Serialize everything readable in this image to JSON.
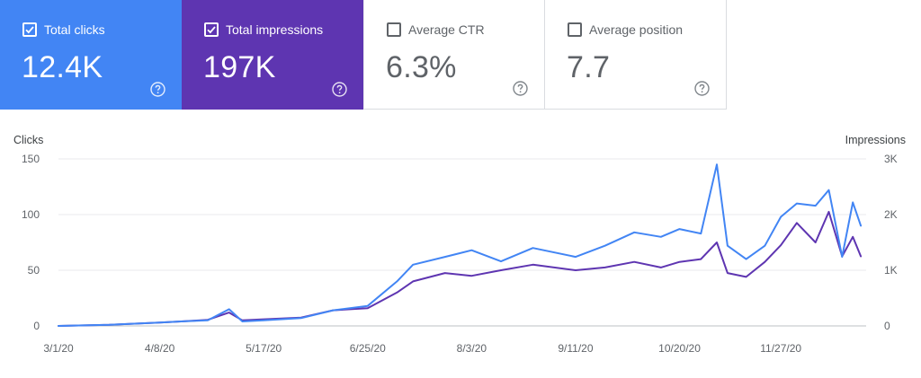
{
  "metrics": [
    {
      "key": "clicks",
      "label": "Total clicks",
      "value": "12.4K",
      "checked": true,
      "color": "#4285f4"
    },
    {
      "key": "impressions",
      "label": "Total impressions",
      "value": "197K",
      "checked": true,
      "color": "#5e35b1"
    },
    {
      "key": "ctr",
      "label": "Average CTR",
      "value": "6.3%",
      "checked": false,
      "color": "#ffffff"
    },
    {
      "key": "position",
      "label": "Average position",
      "value": "7.7",
      "checked": false,
      "color": "#ffffff"
    }
  ],
  "icons": {
    "checkbox": "checkbox-icon",
    "help": "help-circle-icon"
  },
  "chart_data": {
    "type": "line",
    "left_axis_title": "Clicks",
    "right_axis_title": "Impressions",
    "left_ticks": [
      "150",
      "100",
      "50",
      "0"
    ],
    "right_ticks": [
      "3K",
      "2K",
      "1K",
      "0"
    ],
    "ylim_left": [
      0,
      150
    ],
    "ylim_right": [
      0,
      3000
    ],
    "x_tick_labels": [
      "3/1/20",
      "4/8/20",
      "5/17/20",
      "6/25/20",
      "8/3/20",
      "9/11/20",
      "10/20/20",
      "11/27/20"
    ],
    "x_range": [
      "3/1/20",
      "12/29/20"
    ],
    "grid": true,
    "series": [
      {
        "name": "Clicks",
        "axis": "left",
        "color": "#4285f4",
        "points": [
          [
            "3/1/20",
            0
          ],
          [
            "3/20/20",
            1
          ],
          [
            "4/8/20",
            3
          ],
          [
            "4/16/20",
            4
          ],
          [
            "4/26/20",
            5
          ],
          [
            "5/4/20",
            15
          ],
          [
            "5/9/20",
            4
          ],
          [
            "5/17/20",
            5
          ],
          [
            "5/31/20",
            7
          ],
          [
            "6/12/20",
            14
          ],
          [
            "6/25/20",
            18
          ],
          [
            "7/6/20",
            40
          ],
          [
            "7/12/20",
            55
          ],
          [
            "7/24/20",
            62
          ],
          [
            "8/3/20",
            68
          ],
          [
            "8/14/20",
            58
          ],
          [
            "8/26/20",
            70
          ],
          [
            "9/11/20",
            62
          ],
          [
            "9/22/20",
            72
          ],
          [
            "10/3/20",
            84
          ],
          [
            "10/13/20",
            80
          ],
          [
            "10/20/20",
            87
          ],
          [
            "10/28/20",
            83
          ],
          [
            "11/3/20",
            145
          ],
          [
            "11/7/20",
            72
          ],
          [
            "11/14/20",
            60
          ],
          [
            "11/21/20",
            72
          ],
          [
            "11/27/20",
            98
          ],
          [
            "12/3/20",
            110
          ],
          [
            "12/10/20",
            108
          ],
          [
            "12/15/20",
            122
          ],
          [
            "12/20/20",
            62
          ],
          [
            "12/24/20",
            111
          ],
          [
            "12/27/20",
            90
          ]
        ]
      },
      {
        "name": "Impressions",
        "axis": "right",
        "color": "#5e35b1",
        "points": [
          [
            "3/1/20",
            0
          ],
          [
            "3/20/20",
            20
          ],
          [
            "4/8/20",
            60
          ],
          [
            "4/16/20",
            80
          ],
          [
            "4/26/20",
            110
          ],
          [
            "5/4/20",
            240
          ],
          [
            "5/9/20",
            100
          ],
          [
            "5/17/20",
            120
          ],
          [
            "5/31/20",
            150
          ],
          [
            "6/12/20",
            280
          ],
          [
            "6/25/20",
            320
          ],
          [
            "7/6/20",
            600
          ],
          [
            "7/12/20",
            800
          ],
          [
            "7/24/20",
            950
          ],
          [
            "8/3/20",
            900
          ],
          [
            "8/14/20",
            1000
          ],
          [
            "8/26/20",
            1100
          ],
          [
            "9/11/20",
            1000
          ],
          [
            "9/22/20",
            1050
          ],
          [
            "10/3/20",
            1150
          ],
          [
            "10/13/20",
            1050
          ],
          [
            "10/20/20",
            1150
          ],
          [
            "10/28/20",
            1200
          ],
          [
            "11/3/20",
            1500
          ],
          [
            "11/7/20",
            950
          ],
          [
            "11/14/20",
            880
          ],
          [
            "11/21/20",
            1150
          ],
          [
            "11/27/20",
            1450
          ],
          [
            "12/3/20",
            1850
          ],
          [
            "12/10/20",
            1500
          ],
          [
            "12/15/20",
            2050
          ],
          [
            "12/20/20",
            1250
          ],
          [
            "12/24/20",
            1600
          ],
          [
            "12/27/20",
            1250
          ]
        ]
      }
    ]
  }
}
